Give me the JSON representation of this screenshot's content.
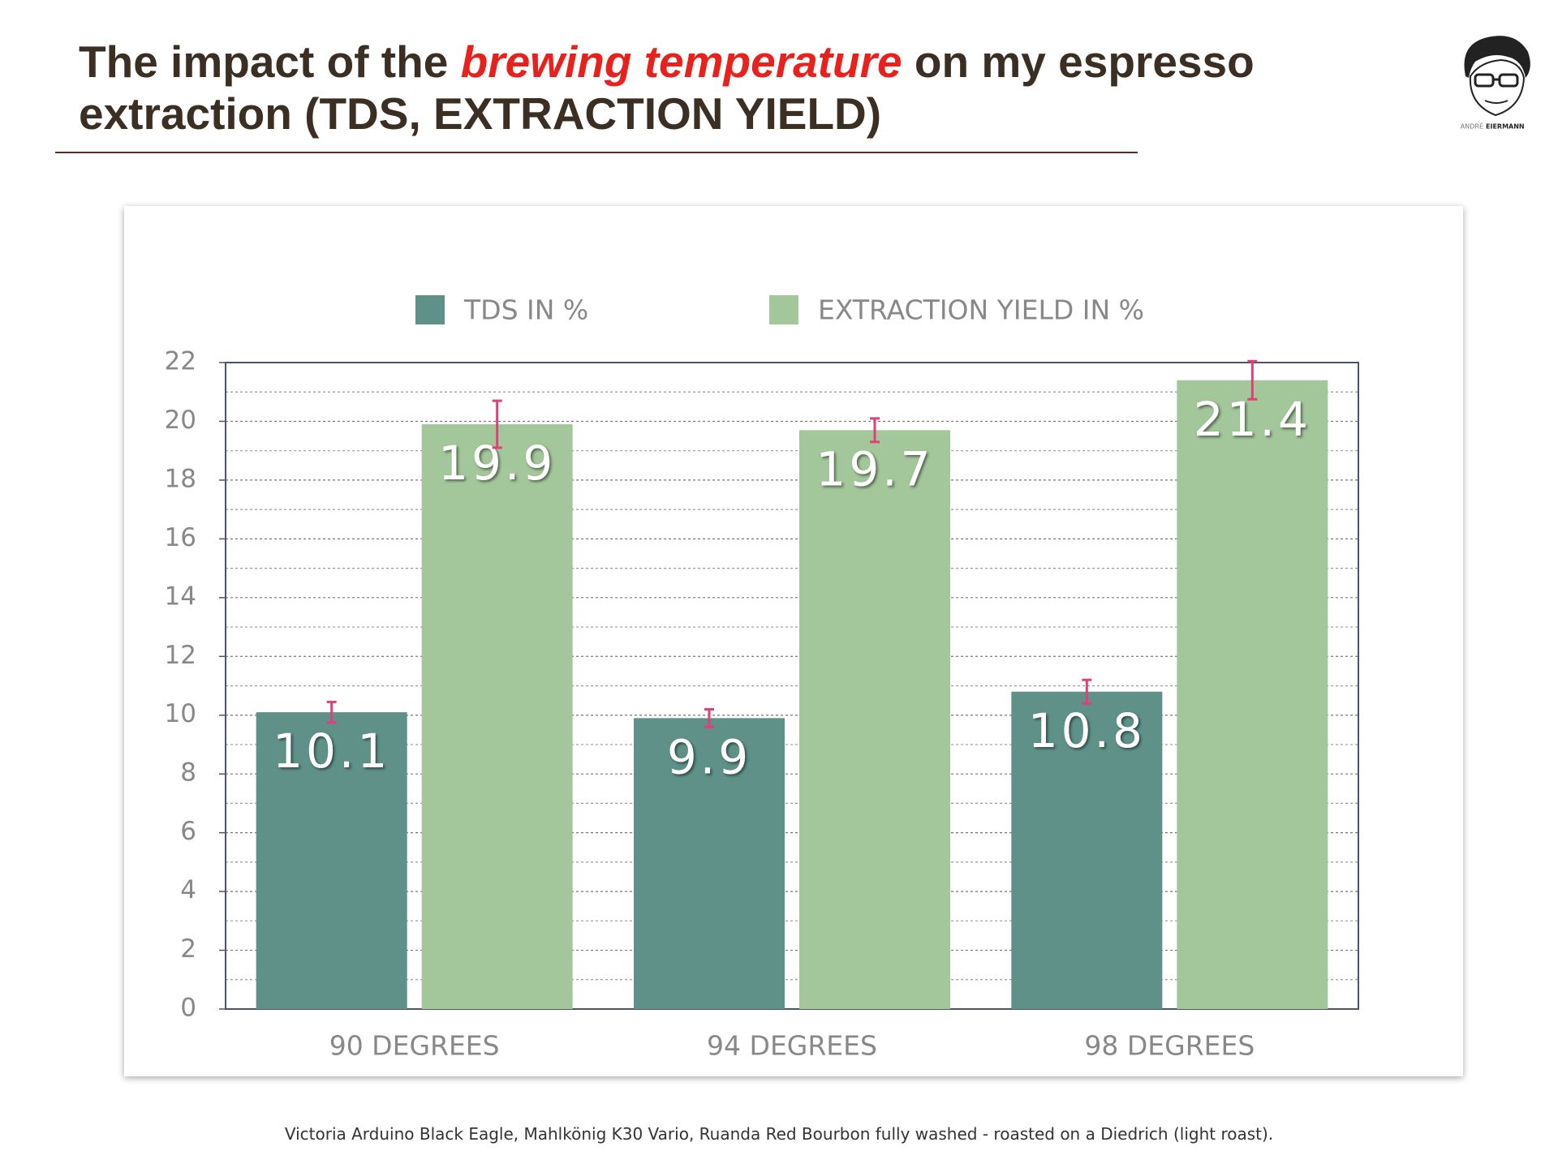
{
  "title": [
    "The impact of the ",
    "brewing temperature",
    " on my espresso",
    "extraction (TDS, EXTRACTION YIELD)"
  ],
  "logo": [
    "ANDRÉ",
    "EIERMANN"
  ],
  "footnote": "Victoria Arduino Black Eagle, Mahlkönig K30 Vario, Ruanda Red Bourbon fully washed - roasted on a Diedrich (light roast).",
  "chart_data": {
    "type": "bar",
    "categories": [
      "90 DEGREES",
      "94 DEGREES",
      "98 DEGREES"
    ],
    "series": [
      {
        "name": "TDS IN %",
        "color": "#5f9189",
        "values": [
          10.1,
          9.9,
          10.8
        ],
        "errors": [
          0.35,
          0.3,
          0.4
        ]
      },
      {
        "name": "EXTRACTION YIELD IN %",
        "color": "#a3c69a",
        "values": [
          19.9,
          19.7,
          21.4
        ],
        "errors": [
          0.8,
          0.4,
          0.65
        ]
      }
    ],
    "error_color": "#e0407a",
    "ylim": [
      0,
      22
    ],
    "yticks": [
      0,
      2,
      4,
      6,
      8,
      10,
      12,
      14,
      16,
      18,
      20,
      22
    ],
    "yminorticks": [
      1,
      3,
      5,
      7,
      9,
      11,
      13,
      15,
      17,
      19,
      21
    ],
    "grid": true,
    "legend": "top"
  }
}
